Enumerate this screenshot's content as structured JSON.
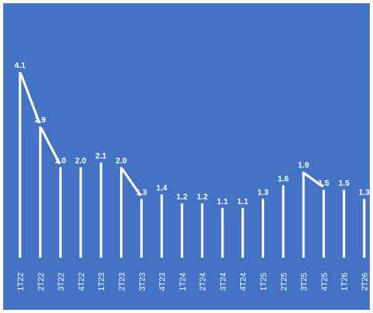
{
  "chart_data": {
    "type": "bar",
    "categories": [
      "1T22",
      "2T22",
      "3T22",
      "4T22",
      "1T23",
      "2T23",
      "3T23",
      "4T23",
      "1T24",
      "2T24",
      "3T24",
      "4T24",
      "1T25",
      "2T25",
      "3T25",
      "4T25",
      "1T26",
      "2T26"
    ],
    "values": [
      4.1,
      2.9,
      2.0,
      2.0,
      2.1,
      2.0,
      1.3,
      1.4,
      1.2,
      1.2,
      1.1,
      1.1,
      1.3,
      1.6,
      1.9,
      1.5,
      1.5,
      1.3
    ],
    "data_labels": [
      "4.1",
      "2.9",
      "2.0",
      "2.0",
      "2.1",
      "2.0",
      "1.3",
      "1.4",
      "1.2",
      "1.2",
      "1.1",
      "1.1",
      "1.3",
      "1.6",
      "1.9",
      "1.5",
      "1.5",
      "1.3"
    ],
    "connectors": [
      [
        0,
        1
      ],
      [
        1,
        2
      ],
      [
        5,
        6
      ],
      [
        14,
        15
      ]
    ],
    "title": "",
    "xlabel": "",
    "ylabel": "",
    "ylim": [
      0,
      4.1
    ],
    "grid": false,
    "legend": "none",
    "colors": {
      "background": "#4472c4",
      "bar": "#ffffff",
      "text": "#ffffff",
      "frame": "#ffffff"
    }
  }
}
